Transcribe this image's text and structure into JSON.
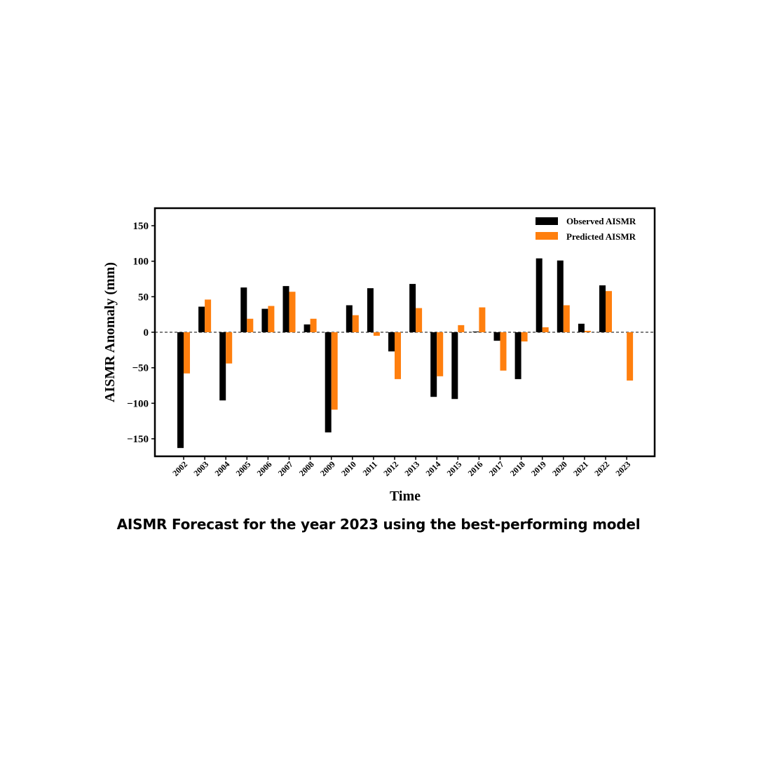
{
  "caption": "AISMR Forecast for the year 2023 using the best-performing model",
  "chart_data": {
    "type": "bar",
    "xlabel": "Time",
    "ylabel": "AISMR Anomaly (mm)",
    "ylim": [
      -175,
      175
    ],
    "yticks": [
      150,
      100,
      50,
      0,
      -50,
      -100,
      -150
    ],
    "zero_line": "dashed",
    "grid": false,
    "legend_position": "top-right",
    "categories": [
      "2002",
      "2003",
      "2004",
      "2005",
      "2006",
      "2007",
      "2008",
      "2009",
      "2010",
      "2011",
      "2012",
      "2013",
      "2014",
      "2015",
      "2016",
      "2017",
      "2018",
      "2019",
      "2020",
      "2021",
      "2022",
      "2023"
    ],
    "series": [
      {
        "name": "Observed AISMR",
        "color": "#000000",
        "values": [
          -163,
          36,
          -96,
          63,
          33,
          65,
          11,
          -141,
          38,
          62,
          -27,
          68,
          -91,
          -94,
          1,
          -12,
          -66,
          104,
          101,
          12,
          66,
          null
        ]
      },
      {
        "name": "Predicted AISMR",
        "color": "#ff7f0e",
        "values": [
          -58,
          46,
          -44,
          19,
          37,
          57,
          19,
          -109,
          24,
          -5,
          -66,
          34,
          -62,
          10,
          35,
          -54,
          -13,
          7,
          38,
          2,
          58,
          -68
        ]
      }
    ]
  }
}
